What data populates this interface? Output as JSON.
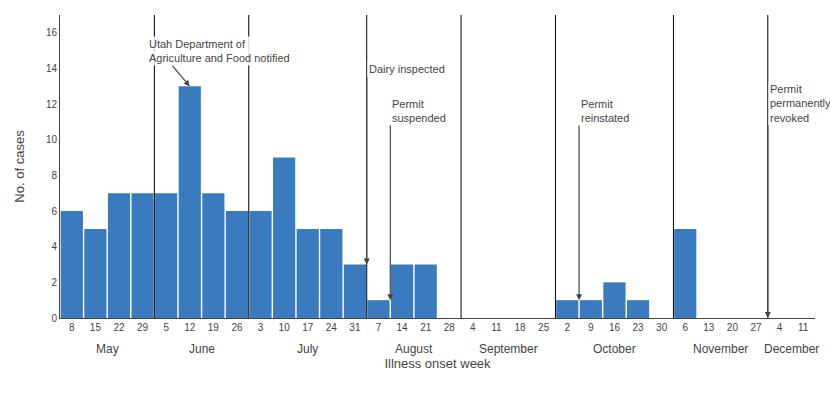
{
  "chart_data": {
    "type": "bar",
    "categories": [
      "8",
      "15",
      "22",
      "29",
      "5",
      "12",
      "19",
      "26",
      "3",
      "10",
      "17",
      "24",
      "31",
      "7",
      "14",
      "21",
      "28",
      "4",
      "11",
      "18",
      "25",
      "2",
      "9",
      "16",
      "23",
      "30",
      "6",
      "13",
      "20",
      "27",
      "4",
      "11"
    ],
    "values": [
      6,
      5,
      7,
      7,
      7,
      13,
      7,
      6,
      6,
      9,
      5,
      5,
      3,
      1,
      3,
      3,
      0,
      0,
      0,
      0,
      0,
      1,
      1,
      2,
      1,
      0,
      5,
      0,
      0,
      0,
      0,
      0
    ],
    "color": "#3a7abf",
    "xlabel": "Illness onset week",
    "ylabel": "No. of cases",
    "ylim": [
      0,
      17
    ],
    "yticks": [
      0,
      2,
      4,
      6,
      8,
      10,
      12,
      14,
      16
    ],
    "grid": false,
    "groups": [
      {
        "label": "May",
        "size": 4
      },
      {
        "label": "June",
        "size": 4
      },
      {
        "label": "July",
        "size": 5
      },
      {
        "label": "August",
        "size": 4
      },
      {
        "label": "September",
        "size": 4
      },
      {
        "label": "October",
        "size": 5
      },
      {
        "label": "November",
        "size": 4
      },
      {
        "label": "December",
        "size": 2
      }
    ],
    "annotations": [
      {
        "text": "Utah Department of\nAgriculture and Food notified",
        "x": 5,
        "y": 13
      },
      {
        "text": "Dairy inspected",
        "x": 12.5,
        "y": 3
      },
      {
        "text": "Permit\nsuspended",
        "x": 13.5,
        "y": 1
      },
      {
        "text": "Permit\nreinstated",
        "x": 21.5,
        "y": 1
      },
      {
        "text": "Permit\npermanently\nrevoked",
        "x": 29.5,
        "y": 0
      }
    ]
  }
}
